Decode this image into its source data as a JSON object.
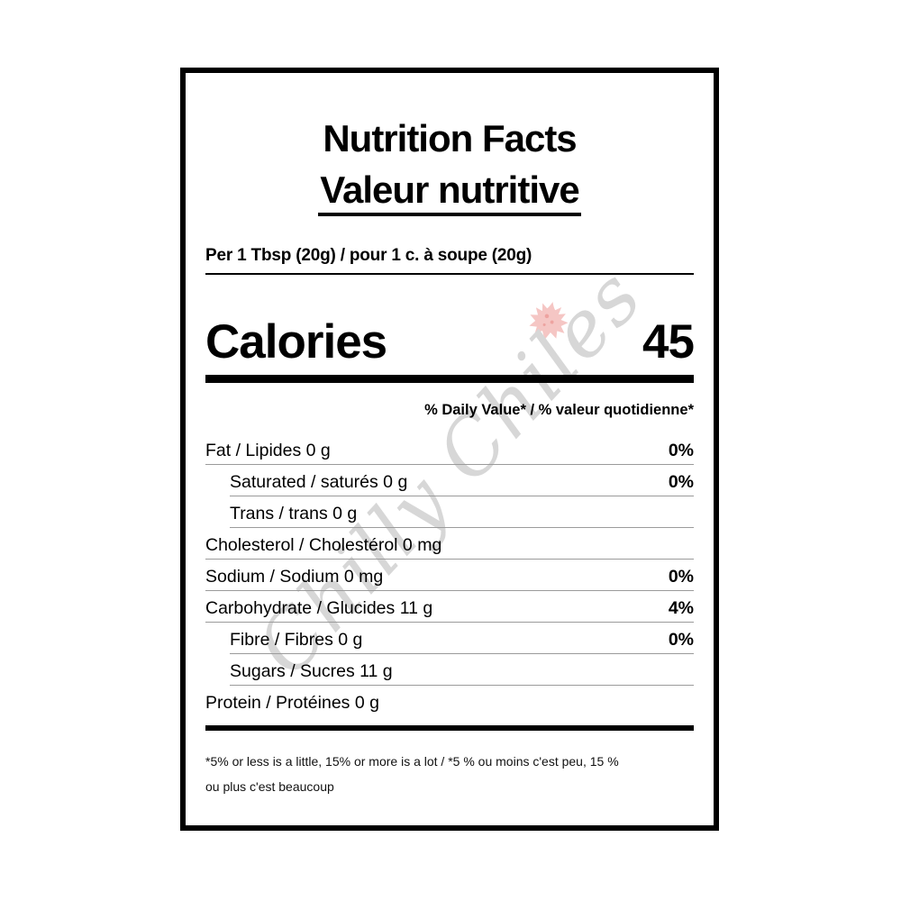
{
  "header": {
    "title_en": "Nutrition Facts",
    "title_fr": "Valeur nutritive"
  },
  "serving": {
    "text": "Per 1 Tbsp (20g) / pour 1 c. à soupe (20g)"
  },
  "calories": {
    "label": "Calories",
    "value": "45"
  },
  "daily_value_header": "% Daily Value* / % valeur quotidienne*",
  "nutrients": [
    {
      "label": "Fat / Lipides 0 g",
      "percent": "0%",
      "indent": false,
      "underline": true
    },
    {
      "label": "Saturated / saturés 0 g",
      "percent": "0%",
      "indent": true,
      "underline": true
    },
    {
      "label": "Trans / trans 0 g",
      "percent": "",
      "indent": true,
      "underline": true
    },
    {
      "label": "Cholesterol / Cholestérol 0 mg",
      "percent": "",
      "indent": false,
      "underline": true
    },
    {
      "label": "Sodium / Sodium 0 mg",
      "percent": "0%",
      "indent": false,
      "underline": true
    },
    {
      "label": "Carbohydrate / Glucides 11 g",
      "percent": "4%",
      "indent": false,
      "underline": true
    },
    {
      "label": "Fibre / Fibres 0 g",
      "percent": "0%",
      "indent": true,
      "underline": true
    },
    {
      "label": "Sugars / Sucres 11 g",
      "percent": "",
      "indent": true,
      "underline": true
    },
    {
      "label": "Protein / Protéines 0 g",
      "percent": "",
      "indent": false,
      "underline": false
    }
  ],
  "footnote": {
    "line1": "*5% or less is a little, 15% or more is a lot / *5 % ou moins c'est peu, 15 %",
    "line2": "ou plus c'est beaucoup"
  },
  "watermark": {
    "text": "Chilly Chiles",
    "text_color": "#d7d7d7",
    "leaf_color": "#f5c6c4",
    "leaf_dot_color": "#eda3a0"
  },
  "colors": {
    "border": "#000000",
    "hairline": "#9b9b9b",
    "background": "#ffffff"
  }
}
